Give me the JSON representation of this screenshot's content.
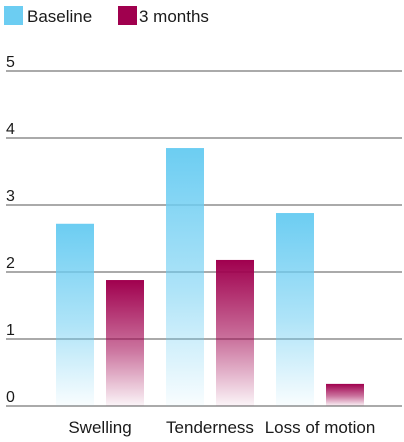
{
  "chart_data": {
    "type": "bar",
    "categories": [
      "Swelling",
      "Tenderness",
      "Loss of motion"
    ],
    "series": [
      {
        "name": "Baseline",
        "values": [
          2.72,
          3.85,
          2.88
        ],
        "color": "#6ccdf2"
      },
      {
        "name": "3 months",
        "values": [
          1.88,
          2.18,
          0.33
        ],
        "color": "#a0004e"
      }
    ],
    "ylim": [
      0,
      5
    ],
    "yticks": [
      "0",
      "1",
      "2",
      "3",
      "4",
      "5"
    ],
    "legend_position": "top-left",
    "grid": true,
    "gradient_fill": true
  }
}
